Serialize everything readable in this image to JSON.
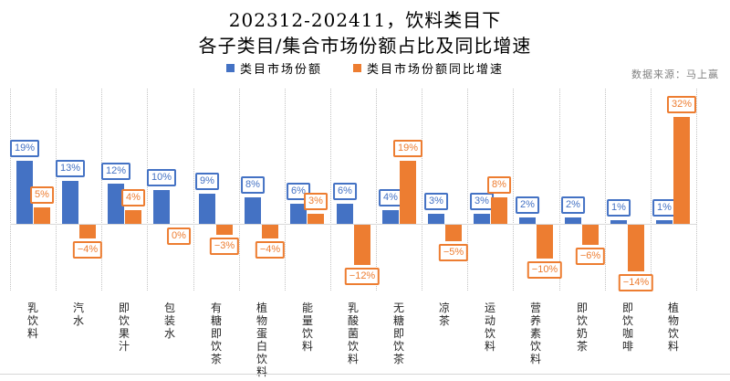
{
  "title": {
    "line1": "202312-202411，饮料类目下",
    "line2": "各子类目/集合市场份额占比及同比增速"
  },
  "legend": {
    "share": "类目市场份额",
    "growth": "类目市场份额同比增速"
  },
  "source": "数据来源：马上赢",
  "colors": {
    "share": "#4472C4",
    "growth": "#ED7D31",
    "gridline": "#c3c3c3",
    "axis_line": "#d9d9d9",
    "source_text": "#808080"
  },
  "chart_data": {
    "type": "bar",
    "title": "202312-202411，饮料类目下 各子类目/集合市场份额占比及同比增速",
    "xlabel": "",
    "ylabel": "",
    "ylim": [
      -16,
      34
    ],
    "grid": "vertical-dotted",
    "legend_position": "top-center",
    "categories": [
      "乳饮料",
      "汽水",
      "即饮果汁",
      "包装水",
      "有糖即饮茶",
      "植物蛋白饮料",
      "能量饮料",
      "乳酸菌饮料",
      "无糖即饮茶",
      "凉茶",
      "运动饮料",
      "营养素饮料",
      "即饮奶茶",
      "即饮咖啡",
      "植物饮料"
    ],
    "series": [
      {
        "name": "类目市场份额",
        "color": "#4472C4",
        "values": [
          19,
          13,
          12,
          10,
          9,
          8,
          6,
          6,
          4,
          3,
          3,
          2,
          2,
          1,
          1
        ],
        "labels": [
          "19%",
          "13%",
          "12%",
          "10%",
          "9%",
          "8%",
          "6%",
          "6%",
          "4%",
          "3%",
          "3%",
          "2%",
          "2%",
          "1%",
          "1%"
        ]
      },
      {
        "name": "类目市场份额同比增速",
        "color": "#ED7D31",
        "values": [
          5,
          -4,
          4,
          0,
          -3,
          -4,
          3,
          -12,
          19,
          -5,
          8,
          -10,
          -6,
          -14,
          32
        ],
        "labels": [
          "5%",
          "−4%",
          "4%",
          "0%",
          "−3%",
          "−4%",
          "3%",
          "−12%",
          "19%",
          "−5%",
          "8%",
          "−10%",
          "−6%",
          "−14%",
          "32%"
        ]
      }
    ]
  }
}
